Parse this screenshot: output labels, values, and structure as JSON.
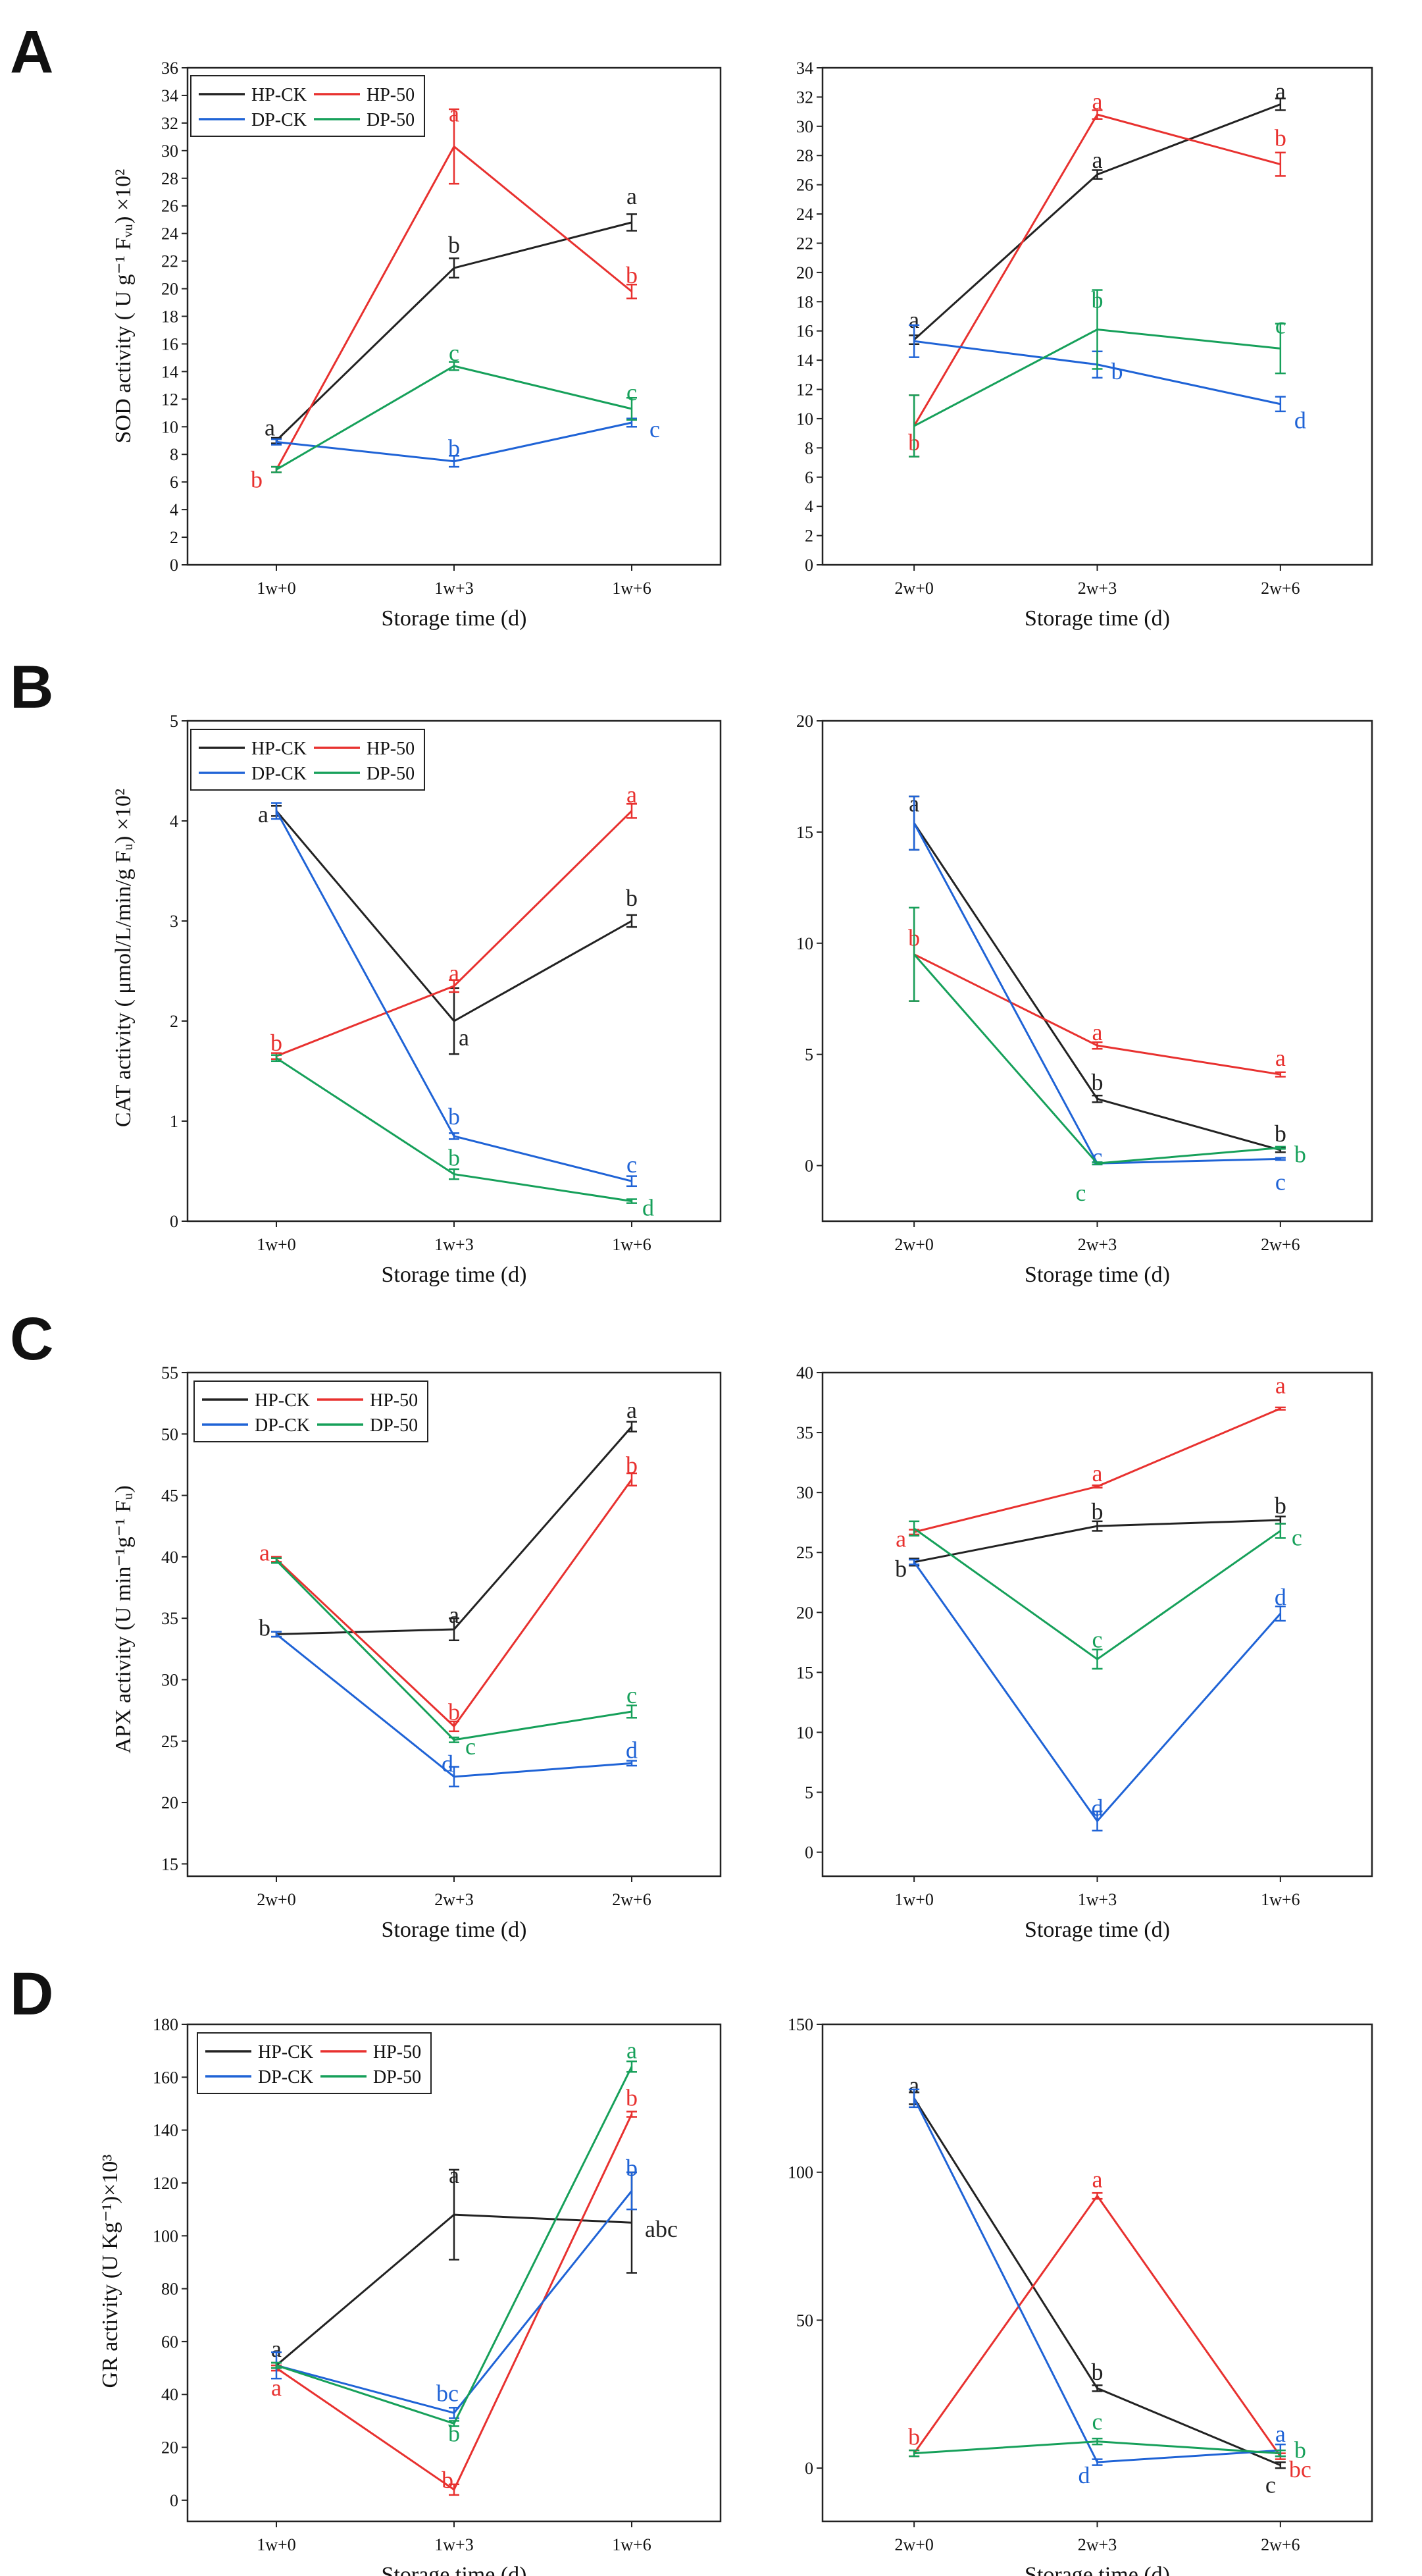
{
  "colors": {
    "HP-CK": "#222222",
    "HP-50": "#e8312f",
    "DP-CK": "#1f63d6",
    "DP-50": "#16a05a"
  },
  "panels": [
    {
      "letter": "A",
      "ylabel": "SOD activity ( U g⁻¹ Fᵥᵤ) ×10²"
    },
    {
      "letter": "B",
      "ylabel": "CAT activity ( μmol/L/min/g Fᵤ) ×10²"
    },
    {
      "letter": "C",
      "ylabel": "APX activity (U min⁻¹g⁻¹ Fᵤ)"
    },
    {
      "letter": "D",
      "ylabel": "GR activity (U Kg⁻¹)×10³"
    }
  ],
  "chart_data": [
    {
      "id": "A-left",
      "type": "line",
      "panel": "A",
      "xlabel": "Storage time (d)",
      "ylabel": "SOD activity ( U g⁻¹ Fᵤ) ×10²",
      "categories": [
        "1w+0",
        "1w+3",
        "1w+6"
      ],
      "ylim": [
        0,
        36
      ],
      "yticks": [
        0,
        2,
        4,
        6,
        8,
        10,
        12,
        14,
        16,
        18,
        20,
        22,
        24,
        26,
        28,
        30,
        32,
        34,
        36
      ],
      "legend": true,
      "series": [
        {
          "name": "HP-CK",
          "values": [
            9,
            21.5,
            24.8
          ],
          "errors": [
            0.2,
            0.7,
            0.6
          ],
          "labels": [
            "a",
            "b",
            "a"
          ]
        },
        {
          "name": "HP-50",
          "values": [
            6.9,
            30.3,
            19.8
          ],
          "errors": [
            0.2,
            2.7,
            0.5
          ],
          "labels": [
            "b",
            "a",
            "b"
          ]
        },
        {
          "name": "DP-CK",
          "values": [
            8.9,
            7.5,
            10.3
          ],
          "errors": [
            0.2,
            0.4,
            0.3
          ],
          "labels": [
            "",
            "b",
            "c"
          ]
        },
        {
          "name": "DP-50",
          "values": [
            6.9,
            14.4,
            11.3
          ],
          "errors": [
            0.2,
            0.3,
            0.8
          ],
          "labels": [
            "",
            "c",
            "c"
          ]
        }
      ]
    },
    {
      "id": "A-right",
      "type": "line",
      "panel": "A",
      "xlabel": "Storage time (d)",
      "ylabel": "",
      "categories": [
        "2w+0",
        "2w+3",
        "2w+6"
      ],
      "ylim": [
        0,
        34
      ],
      "yticks": [
        0,
        2,
        4,
        6,
        8,
        10,
        12,
        14,
        16,
        18,
        20,
        22,
        24,
        26,
        28,
        30,
        32,
        34
      ],
      "legend": false,
      "series": [
        {
          "name": "HP-CK",
          "values": [
            15.4,
            26.7,
            31.5
          ],
          "errors": [
            0.3,
            0.3,
            0.4
          ],
          "labels": [
            "a",
            "a",
            "a"
          ]
        },
        {
          "name": "HP-50",
          "values": [
            9.5,
            30.8,
            27.4
          ],
          "errors": [
            2.1,
            0.3,
            0.8
          ],
          "labels": [
            "b",
            "a",
            "b"
          ]
        },
        {
          "name": "DP-CK",
          "values": [
            15.3,
            13.7,
            11
          ],
          "errors": [
            1.1,
            0.9,
            0.5
          ],
          "labels": [
            "",
            "b",
            "d"
          ]
        },
        {
          "name": "DP-50",
          "values": [
            9.5,
            16.1,
            14.8
          ],
          "errors": [
            2.1,
            2.7,
            1.7
          ],
          "labels": [
            "",
            "b",
            "c"
          ]
        }
      ]
    },
    {
      "id": "B-left",
      "type": "line",
      "panel": "B",
      "xlabel": "Storage time (d)",
      "ylabel": "CAT activity ( μmol/L/min/g Fᵤ) ×10²",
      "categories": [
        "1w+0",
        "1w+3",
        "1w+6"
      ],
      "ylim": [
        0,
        5
      ],
      "yticks": [
        0,
        1,
        2,
        3,
        4,
        5
      ],
      "legend": true,
      "series": [
        {
          "name": "HP-CK",
          "values": [
            4.1,
            2.0,
            3.0
          ],
          "errors": [
            0.05,
            0.33,
            0.06
          ],
          "labels": [
            "a",
            "a",
            "b"
          ]
        },
        {
          "name": "HP-50",
          "values": [
            1.65,
            2.35,
            4.1
          ],
          "errors": [
            0.03,
            0.06,
            0.07
          ],
          "labels": [
            "b",
            "a",
            "a"
          ]
        },
        {
          "name": "DP-CK",
          "values": [
            4.1,
            0.85,
            0.4
          ],
          "errors": [
            0.08,
            0.03,
            0.05
          ],
          "labels": [
            "",
            "b",
            "c"
          ]
        },
        {
          "name": "DP-50",
          "values": [
            1.63,
            0.47,
            0.2
          ],
          "errors": [
            0.03,
            0.05,
            0.02
          ],
          "labels": [
            "",
            "b",
            "d"
          ]
        }
      ]
    },
    {
      "id": "B-right",
      "type": "line",
      "panel": "B",
      "xlabel": "Storage time (d)",
      "ylabel": "",
      "categories": [
        "2w+0",
        "2w+3",
        "2w+6"
      ],
      "ylim": [
        -2.5,
        20
      ],
      "yticks": [
        0,
        5,
        10,
        15,
        20
      ],
      "legend": false,
      "series": [
        {
          "name": "HP-CK",
          "values": [
            15.4,
            3.0,
            0.7
          ],
          "errors": [
            1.2,
            0.15,
            0.1
          ],
          "labels": [
            "a",
            "b",
            "b"
          ]
        },
        {
          "name": "HP-50",
          "values": [
            9.5,
            5.4,
            4.1
          ],
          "errors": [
            2.1,
            0.15,
            0.1
          ],
          "labels": [
            "b",
            "a",
            "a"
          ]
        },
        {
          "name": "DP-CK",
          "values": [
            15.4,
            0.1,
            0.3
          ],
          "errors": [
            1.2,
            0.05,
            0.05
          ],
          "labels": [
            "",
            "c",
            "c"
          ]
        },
        {
          "name": "DP-50",
          "values": [
            9.5,
            0.1,
            0.8
          ],
          "errors": [
            2.1,
            0.05,
            0.05
          ],
          "labels": [
            "",
            "c",
            "b"
          ]
        }
      ]
    },
    {
      "id": "C-left",
      "type": "line",
      "panel": "C",
      "xlabel": "Storage time (d)",
      "ylabel": "APX activity (U min⁻¹g⁻¹ Fᵤ)",
      "categories": [
        "2w+0",
        "2w+3",
        "2w+6"
      ],
      "ylim": [
        14,
        55
      ],
      "yticks": [
        15,
        20,
        25,
        30,
        35,
        40,
        45,
        50,
        55
      ],
      "legend": true,
      "series": [
        {
          "name": "HP-CK",
          "values": [
            33.7,
            34.1,
            50.6
          ],
          "errors": [
            0.2,
            0.9,
            0.4
          ],
          "labels": [
            "b",
            "a",
            "a"
          ]
        },
        {
          "name": "HP-50",
          "values": [
            39.8,
            26.2,
            46.3
          ],
          "errors": [
            0.2,
            0.4,
            0.5
          ],
          "labels": [
            "a",
            "b",
            "b"
          ]
        },
        {
          "name": "DP-CK",
          "values": [
            33.7,
            22.1,
            23.2
          ],
          "errors": [
            0.2,
            0.8,
            0.2
          ],
          "labels": [
            "",
            "d",
            "d"
          ]
        },
        {
          "name": "DP-50",
          "values": [
            39.7,
            25.1,
            27.4
          ],
          "errors": [
            0.2,
            0.2,
            0.5
          ],
          "labels": [
            "",
            "c",
            "c"
          ]
        }
      ]
    },
    {
      "id": "C-right",
      "type": "line",
      "panel": "C",
      "xlabel": "Storage time (d)",
      "ylabel": "",
      "categories": [
        "1w+0",
        "1w+3",
        "1w+6"
      ],
      "ylim": [
        -2,
        40
      ],
      "yticks": [
        0,
        5,
        10,
        15,
        20,
        25,
        30,
        35,
        40
      ],
      "legend": false,
      "series": [
        {
          "name": "HP-CK",
          "values": [
            24.2,
            27.2,
            27.7
          ],
          "errors": [
            0.3,
            0.4,
            0.3
          ],
          "labels": [
            "b",
            "b",
            "b"
          ]
        },
        {
          "name": "HP-50",
          "values": [
            26.7,
            30.5,
            37
          ],
          "errors": [
            0.2,
            0.1,
            0.1
          ],
          "labels": [
            "a",
            "a",
            "a"
          ]
        },
        {
          "name": "DP-CK",
          "values": [
            24.2,
            2.6,
            19.9
          ],
          "errors": [
            0.2,
            0.8,
            0.6
          ],
          "labels": [
            "",
            "d",
            "d"
          ]
        },
        {
          "name": "DP-50",
          "values": [
            27,
            16.1,
            26.8
          ],
          "errors": [
            0.6,
            0.8,
            0.6
          ],
          "labels": [
            "",
            "c",
            "c"
          ]
        }
      ]
    },
    {
      "id": "D-left",
      "type": "line",
      "panel": "D",
      "xlabel": "Storage time (d)",
      "ylabel": "GR activity (U Kg⁻¹)×10³",
      "categories": [
        "1w+0",
        "1w+3",
        "1w+6"
      ],
      "ylim": [
        -8,
        180
      ],
      "yticks": [
        0,
        20,
        40,
        60,
        80,
        100,
        120,
        140,
        160,
        180
      ],
      "legend": true,
      "series": [
        {
          "name": "HP-CK",
          "values": [
            51,
            108,
            105
          ],
          "errors": [
            1,
            17,
            19
          ],
          "labels": [
            "a",
            "a",
            "abc"
          ]
        },
        {
          "name": "HP-50",
          "values": [
            50,
            4,
            146
          ],
          "errors": [
            1,
            2,
            1
          ],
          "labels": [
            "a",
            "b",
            "b"
          ]
        },
        {
          "name": "DP-CK",
          "values": [
            51,
            33,
            117
          ],
          "errors": [
            5,
            2,
            7
          ],
          "labels": [
            "",
            "bc",
            "b"
          ]
        },
        {
          "name": "DP-50",
          "values": [
            51,
            29,
            164
          ],
          "errors": [
            1,
            1,
            2
          ],
          "labels": [
            "",
            "b",
            "a"
          ]
        }
      ]
    },
    {
      "id": "D-right",
      "type": "line",
      "panel": "D",
      "xlabel": "Storage time (d)",
      "ylabel": "",
      "categories": [
        "2w+0",
        "2w+3",
        "2w+6"
      ],
      "ylim": [
        -18,
        150
      ],
      "yticks": [
        0,
        50,
        100,
        150
      ],
      "legend": false,
      "series": [
        {
          "name": "HP-CK",
          "values": [
            125,
            27,
            1
          ],
          "errors": [
            2,
            1,
            1
          ],
          "labels": [
            "a",
            "b",
            "c"
          ]
        },
        {
          "name": "HP-50",
          "values": [
            5,
            92,
            4
          ],
          "errors": [
            1,
            1,
            1
          ],
          "labels": [
            "b",
            "a",
            "bc"
          ]
        },
        {
          "name": "DP-CK",
          "values": [
            125,
            2,
            6
          ],
          "errors": [
            3,
            1,
            2
          ],
          "labels": [
            "",
            "d",
            "a"
          ]
        },
        {
          "name": "DP-50",
          "values": [
            5,
            9,
            5
          ],
          "errors": [
            1,
            1,
            1
          ],
          "labels": [
            "",
            "c",
            "b"
          ]
        }
      ]
    }
  ]
}
